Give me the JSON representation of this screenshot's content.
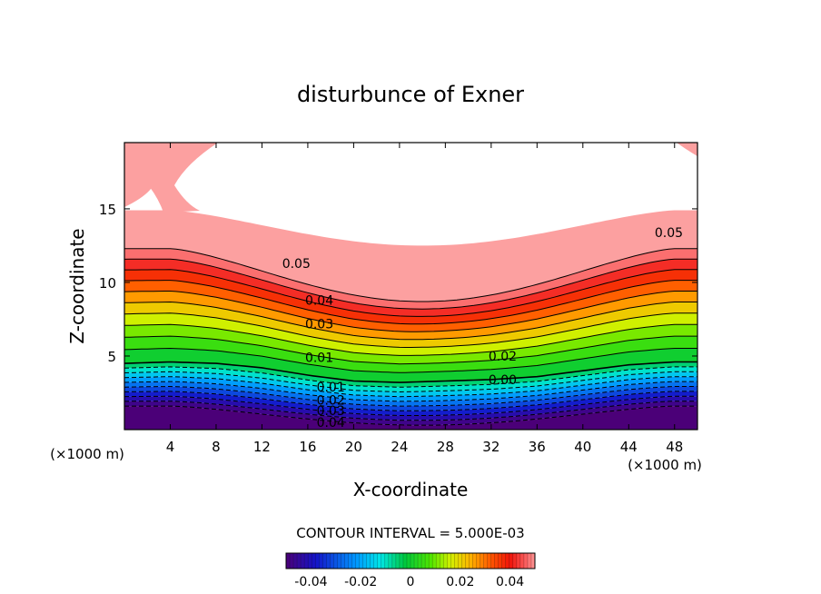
{
  "chart_data": {
    "type": "contour",
    "title": "disturbunce of Exner",
    "xlabel": "X-coordinate",
    "ylabel": "Z-coordinate",
    "x_unit_left": "(×1000 m)",
    "x_unit_right": "(×1000 m)",
    "xlim": [
      0,
      50
    ],
    "ylim": [
      0,
      19.5
    ],
    "xticks": [
      4,
      8,
      12,
      16,
      20,
      24,
      28,
      32,
      36,
      40,
      44,
      48
    ],
    "xtick_labels": [
      "4",
      "8",
      "12",
      "16",
      "20",
      "24",
      "28",
      "32",
      "36",
      "40",
      "44",
      "48"
    ],
    "yticks": [
      5,
      10,
      15
    ],
    "ytick_labels": [
      "5",
      "10",
      "15"
    ],
    "contour_interval_text": "CONTOUR INTERVAL = 5.000E-03",
    "contour_interval": 0.005,
    "field_min": -0.045,
    "field_max": 0.05,
    "terrain_profile": {
      "x": [
        0,
        4,
        8,
        12,
        16,
        20,
        24,
        28,
        32,
        36,
        40,
        44,
        48,
        50
      ],
      "level_0_00_z": [
        4.5,
        4.6,
        4.5,
        4.2,
        3.7,
        3.3,
        3.2,
        3.3,
        3.4,
        3.6,
        4.0,
        4.4,
        4.6,
        4.6
      ]
    },
    "contour_labels": [
      {
        "text": "0.05",
        "x": 15.0,
        "z": 11.3
      },
      {
        "text": "0.05",
        "x": 47.5,
        "z": 13.4
      },
      {
        "text": "0.04",
        "x": 17.0,
        "z": 8.8
      },
      {
        "text": "0.03",
        "x": 17.0,
        "z": 7.2
      },
      {
        "text": "0.01",
        "x": 17.0,
        "z": 4.9
      },
      {
        "text": "0.02",
        "x": 33.0,
        "z": 5.0
      },
      {
        "text": "0.00",
        "x": 33.0,
        "z": 3.4
      },
      {
        "text": "0.01",
        "x": 18.0,
        "z": 2.9
      },
      {
        "text": "0.02",
        "x": 18.0,
        "z": 2.0
      },
      {
        "text": "0.03",
        "x": 18.0,
        "z": 1.3
      },
      {
        "text": "0.04",
        "x": 18.0,
        "z": 0.5
      }
    ],
    "colorbar": {
      "ticks": [
        -0.04,
        -0.02,
        0,
        0.02,
        0.04
      ],
      "tick_labels": [
        "-0.04",
        "-0.02",
        "0",
        "0.02",
        "0.04"
      ],
      "range": [
        -0.05,
        0.05
      ]
    }
  }
}
